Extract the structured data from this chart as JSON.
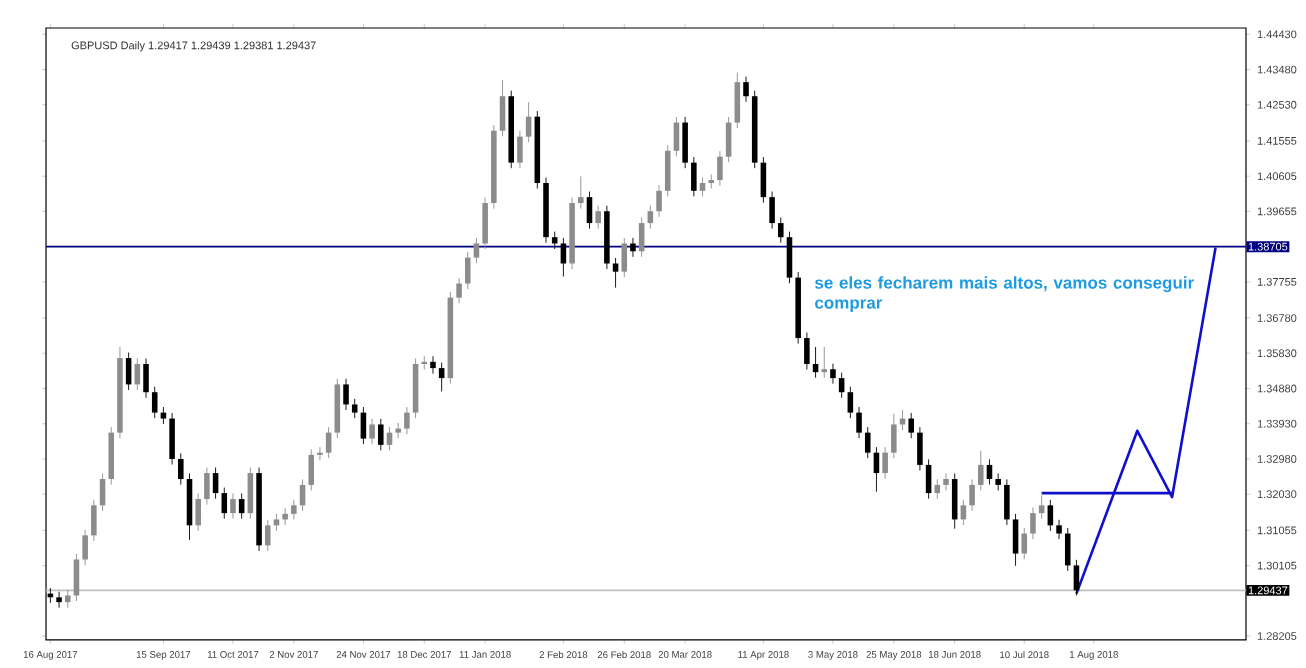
{
  "chart_data": {
    "type": "candlestick",
    "title": "GBPUSD Daily 1.29417 1.29439 1.29381 1.29437",
    "annotations": [
      "se eles fecharem mais altos, vamos conseguir comprar"
    ],
    "categories": [
      "16 Aug 2017",
      null,
      null,
      null,
      null,
      null,
      null,
      null,
      null,
      null,
      null,
      null,
      null,
      "15 Sep 2017",
      null,
      null,
      null,
      null,
      null,
      null,
      null,
      "11 Oct 2017",
      null,
      null,
      null,
      null,
      null,
      null,
      "2 Nov 2017",
      null,
      null,
      null,
      null,
      null,
      null,
      null,
      "24 Nov 2017",
      null,
      null,
      null,
      null,
      null,
      null,
      "18 Dec 2017",
      null,
      null,
      null,
      null,
      null,
      null,
      "11 Jan 2018",
      null,
      null,
      null,
      null,
      null,
      null,
      null,
      null,
      "2 Feb 2018",
      null,
      null,
      null,
      null,
      null,
      null,
      "26 Feb 2018",
      null,
      null,
      null,
      null,
      null,
      null,
      "20 Mar 2018",
      null,
      null,
      null,
      null,
      null,
      null,
      null,
      null,
      "11 Apr 2018",
      null,
      null,
      null,
      null,
      null,
      null,
      null,
      "3 May 2018",
      null,
      null,
      null,
      null,
      null,
      null,
      "25 May 2018",
      null,
      null,
      null,
      null,
      null,
      null,
      "18 Jun 2018",
      null,
      null,
      null,
      null,
      null,
      null,
      null,
      "10 Jul 2018",
      null,
      null,
      null,
      null,
      null,
      null,
      null,
      "1 Aug 2018",
      null,
      null,
      null,
      null,
      null,
      null,
      null,
      null,
      null,
      null,
      null,
      null,
      null,
      null,
      null,
      null,
      null
    ],
    "ohlc": [
      [
        1.2935,
        1.295,
        1.291,
        1.2925
      ],
      [
        1.2925,
        1.294,
        1.2897,
        1.2912
      ],
      [
        1.2912,
        1.2945,
        1.2897,
        1.293
      ],
      [
        1.293,
        1.3042,
        1.2915,
        1.3027
      ],
      [
        1.3027,
        1.3107,
        1.3012,
        1.3092
      ],
      [
        1.3092,
        1.3188,
        1.3077,
        1.3173
      ],
      [
        1.3173,
        1.3259,
        1.3158,
        1.3244
      ],
      [
        1.3244,
        1.3384,
        1.3229,
        1.3369
      ],
      [
        1.3369,
        1.36,
        1.3354,
        1.357
      ],
      [
        1.357,
        1.3585,
        1.3484,
        1.3499
      ],
      [
        1.3499,
        1.3569,
        1.3484,
        1.3554
      ],
      [
        1.3554,
        1.3569,
        1.3463,
        1.3478
      ],
      [
        1.3478,
        1.3493,
        1.3408,
        1.3423
      ],
      [
        1.3423,
        1.3438,
        1.3392,
        1.3407
      ],
      [
        1.3407,
        1.3422,
        1.3283,
        1.3298
      ],
      [
        1.3298,
        1.3313,
        1.3229,
        1.3244
      ],
      [
        1.3244,
        1.3259,
        1.308,
        1.3119
      ],
      [
        1.3119,
        1.3205,
        1.3104,
        1.319
      ],
      [
        1.319,
        1.3275,
        1.3175,
        1.326
      ],
      [
        1.326,
        1.3275,
        1.3191,
        1.3206
      ],
      [
        1.3206,
        1.3221,
        1.3137,
        1.3152
      ],
      [
        1.3152,
        1.3205,
        1.3137,
        1.319
      ],
      [
        1.319,
        1.3205,
        1.3137,
        1.3152
      ],
      [
        1.3152,
        1.3275,
        1.3137,
        1.326
      ],
      [
        1.326,
        1.3275,
        1.305,
        1.3065
      ],
      [
        1.3065,
        1.3134,
        1.305,
        1.3119
      ],
      [
        1.3119,
        1.315,
        1.3104,
        1.3135
      ],
      [
        1.3135,
        1.3165,
        1.312,
        1.315
      ],
      [
        1.315,
        1.3188,
        1.3135,
        1.3173
      ],
      [
        1.3173,
        1.3243,
        1.3158,
        1.3228
      ],
      [
        1.3228,
        1.3324,
        1.3213,
        1.3309
      ],
      [
        1.3309,
        1.333,
        1.3294,
        1.3315
      ],
      [
        1.3315,
        1.3384,
        1.33,
        1.3369
      ],
      [
        1.3369,
        1.3514,
        1.3354,
        1.3499
      ],
      [
        1.3499,
        1.3514,
        1.343,
        1.3445
      ],
      [
        1.3445,
        1.346,
        1.3408,
        1.3423
      ],
      [
        1.3423,
        1.3438,
        1.3338,
        1.3353
      ],
      [
        1.3353,
        1.3406,
        1.3338,
        1.3391
      ],
      [
        1.3391,
        1.3406,
        1.3321,
        1.3336
      ],
      [
        1.3336,
        1.3384,
        1.3321,
        1.3369
      ],
      [
        1.3369,
        1.3395,
        1.3354,
        1.338
      ],
      [
        1.338,
        1.3438,
        1.3365,
        1.3423
      ],
      [
        1.3423,
        1.3569,
        1.3408,
        1.3554
      ],
      [
        1.3554,
        1.3575,
        1.3539,
        1.356
      ],
      [
        1.356,
        1.3575,
        1.3528,
        1.3543
      ],
      [
        1.3543,
        1.3558,
        1.348,
        1.3516
      ],
      [
        1.3516,
        1.3748,
        1.3501,
        1.3733
      ],
      [
        1.3733,
        1.3786,
        1.3718,
        1.3771
      ],
      [
        1.3771,
        1.3856,
        1.3756,
        1.3841
      ],
      [
        1.3841,
        1.3894,
        1.3826,
        1.3879
      ],
      [
        1.3879,
        1.4003,
        1.3864,
        1.3988
      ],
      [
        1.3988,
        1.4198,
        1.3973,
        1.4183
      ],
      [
        1.4183,
        1.432,
        1.4168,
        1.4276
      ],
      [
        1.4276,
        1.4291,
        1.4082,
        1.4097
      ],
      [
        1.4097,
        1.4182,
        1.4082,
        1.4167
      ],
      [
        1.4167,
        1.426,
        1.4152,
        1.4221
      ],
      [
        1.4221,
        1.4236,
        1.4027,
        1.4042
      ],
      [
        1.4042,
        1.4057,
        1.3881,
        1.3896
      ],
      [
        1.3896,
        1.3911,
        1.3864,
        1.3879
      ],
      [
        1.3879,
        1.3894,
        1.379,
        1.3825
      ],
      [
        1.3825,
        1.4003,
        1.381,
        1.3988
      ],
      [
        1.3988,
        1.406,
        1.3973,
        1.4004
      ],
      [
        1.4004,
        1.4019,
        1.3919,
        1.3934
      ],
      [
        1.3934,
        1.3981,
        1.3919,
        1.3966
      ],
      [
        1.3966,
        1.3981,
        1.381,
        1.3825
      ],
      [
        1.3825,
        1.384,
        1.376,
        1.3803
      ],
      [
        1.3803,
        1.3894,
        1.3788,
        1.3879
      ],
      [
        1.3879,
        1.3894,
        1.3843,
        1.3858
      ],
      [
        1.3858,
        1.3949,
        1.3843,
        1.3934
      ],
      [
        1.3934,
        1.3981,
        1.3919,
        1.3966
      ],
      [
        1.3966,
        1.4036,
        1.3951,
        1.4021
      ],
      [
        1.4021,
        1.4144,
        1.4006,
        1.4129
      ],
      [
        1.4129,
        1.422,
        1.4114,
        1.4205
      ],
      [
        1.4205,
        1.422,
        1.4082,
        1.4097
      ],
      [
        1.4097,
        1.4112,
        1.4006,
        1.4021
      ],
      [
        1.4021,
        1.4057,
        1.4006,
        1.4042
      ],
      [
        1.4042,
        1.4065,
        1.4027,
        1.405
      ],
      [
        1.405,
        1.4128,
        1.4035,
        1.4113
      ],
      [
        1.4113,
        1.422,
        1.4098,
        1.4205
      ],
      [
        1.4205,
        1.434,
        1.419,
        1.4314
      ],
      [
        1.4314,
        1.4329,
        1.4261,
        1.4276
      ],
      [
        1.4276,
        1.4291,
        1.4082,
        1.4097
      ],
      [
        1.4097,
        1.4112,
        1.3989,
        1.4004
      ],
      [
        1.4004,
        1.4019,
        1.3919,
        1.3934
      ],
      [
        1.3934,
        1.3949,
        1.3881,
        1.3896
      ],
      [
        1.3896,
        1.3911,
        1.3772,
        1.3787
      ],
      [
        1.3787,
        1.3802,
        1.3609,
        1.3624
      ],
      [
        1.3624,
        1.3639,
        1.3539,
        1.3554
      ],
      [
        1.3554,
        1.36,
        1.3517,
        1.3532
      ],
      [
        1.3532,
        1.36,
        1.3517,
        1.354
      ],
      [
        1.354,
        1.3555,
        1.3501,
        1.3516
      ],
      [
        1.3516,
        1.3531,
        1.3463,
        1.3478
      ],
      [
        1.3478,
        1.3493,
        1.3408,
        1.3423
      ],
      [
        1.3423,
        1.3438,
        1.3354,
        1.3369
      ],
      [
        1.3369,
        1.3384,
        1.33,
        1.3315
      ],
      [
        1.3315,
        1.333,
        1.321,
        1.326
      ],
      [
        1.326,
        1.333,
        1.3245,
        1.3315
      ],
      [
        1.3315,
        1.342,
        1.33,
        1.3391
      ],
      [
        1.3391,
        1.343,
        1.3376,
        1.3407
      ],
      [
        1.3407,
        1.3422,
        1.3354,
        1.3369
      ],
      [
        1.3369,
        1.3384,
        1.3267,
        1.3282
      ],
      [
        1.3282,
        1.3297,
        1.3191,
        1.3206
      ],
      [
        1.3206,
        1.3243,
        1.3191,
        1.3228
      ],
      [
        1.3228,
        1.3259,
        1.3213,
        1.3244
      ],
      [
        1.3244,
        1.3259,
        1.311,
        1.3135
      ],
      [
        1.3135,
        1.3188,
        1.312,
        1.3173
      ],
      [
        1.3173,
        1.3243,
        1.3158,
        1.3228
      ],
      [
        1.3228,
        1.332,
        1.3213,
        1.3282
      ],
      [
        1.3282,
        1.3297,
        1.3229,
        1.3244
      ],
      [
        1.3244,
        1.3259,
        1.3213,
        1.3228
      ],
      [
        1.3228,
        1.3243,
        1.312,
        1.3135
      ],
      [
        1.3135,
        1.315,
        1.301,
        1.3043
      ],
      [
        1.3043,
        1.3112,
        1.3028,
        1.3097
      ],
      [
        1.3097,
        1.3167,
        1.3082,
        1.3152
      ],
      [
        1.3152,
        1.32,
        1.3137,
        1.3173
      ],
      [
        1.3173,
        1.3188,
        1.3104,
        1.3119
      ],
      [
        1.3119,
        1.3134,
        1.3082,
        1.3097
      ],
      [
        1.3097,
        1.3112,
        1.2996,
        1.3011
      ],
      [
        1.3011,
        1.3026,
        1.293,
        1.2944
      ],
      null,
      null,
      null,
      null,
      null,
      null,
      null,
      null,
      null,
      null,
      null,
      null,
      null,
      null,
      null,
      null,
      null,
      null,
      null
    ],
    "series": [
      {
        "type": "line",
        "color": "#1010cc",
        "values": [
          null,
          null,
          null,
          null,
          null,
          null,
          null,
          null,
          null,
          null,
          null,
          null,
          null,
          null,
          null,
          null,
          null,
          null,
          null,
          null,
          null,
          null,
          null,
          null,
          null,
          null,
          null,
          null,
          null,
          null,
          null,
          null,
          null,
          null,
          null,
          null,
          null,
          null,
          null,
          null,
          null,
          null,
          null,
          null,
          null,
          null,
          null,
          null,
          null,
          null,
          null,
          null,
          null,
          null,
          null,
          null,
          null,
          null,
          null,
          null,
          null,
          null,
          null,
          null,
          null,
          null,
          null,
          null,
          null,
          null,
          null,
          null,
          null,
          null,
          null,
          null,
          null,
          null,
          null,
          null,
          null,
          null,
          null,
          null,
          null,
          null,
          null,
          null,
          null,
          null,
          null,
          null,
          null,
          null,
          null,
          null,
          null,
          null,
          null,
          null,
          null,
          null,
          null,
          null,
          null,
          null,
          null,
          null,
          null,
          null,
          null,
          null,
          null,
          null,
          null,
          null,
          null,
          null,
          1.2935,
          null,
          null,
          null,
          null,
          null,
          null,
          1.3374,
          null,
          null,
          null,
          1.3195,
          null,
          null,
          null,
          null,
          1.3868,
          null,
          null,
          null
        ]
      },
      {
        "type": "line",
        "color": "#1010cc",
        "values": [
          null,
          null,
          null,
          null,
          null,
          null,
          null,
          null,
          null,
          null,
          null,
          null,
          null,
          null,
          null,
          null,
          null,
          null,
          null,
          null,
          null,
          null,
          null,
          null,
          null,
          null,
          null,
          null,
          null,
          null,
          null,
          null,
          null,
          null,
          null,
          null,
          null,
          null,
          null,
          null,
          null,
          null,
          null,
          null,
          null,
          null,
          null,
          null,
          null,
          null,
          null,
          null,
          null,
          null,
          null,
          null,
          null,
          null,
          null,
          null,
          null,
          null,
          null,
          null,
          null,
          null,
          null,
          null,
          null,
          null,
          null,
          null,
          null,
          null,
          null,
          null,
          null,
          null,
          null,
          null,
          null,
          null,
          null,
          null,
          null,
          null,
          null,
          null,
          null,
          null,
          null,
          null,
          null,
          null,
          null,
          null,
          null,
          null,
          null,
          null,
          null,
          null,
          null,
          null,
          null,
          null,
          null,
          null,
          null,
          null,
          null,
          null,
          null,
          null,
          1.3206,
          1.3206,
          1.3206,
          1.3206,
          1.3206,
          1.3206,
          1.3206,
          1.3206,
          1.3206,
          1.3206,
          1.3206,
          1.3206,
          1.3206,
          1.3206,
          1.3206,
          1.3206,
          null,
          null,
          null,
          null,
          null,
          null,
          null,
          null
        ]
      }
    ],
    "ref_lines": [
      {
        "axis": "y",
        "value": 1.38705,
        "label": "1.38705",
        "color": "#000080"
      },
      {
        "axis": "y",
        "value": 1.29437,
        "label": "1.29437",
        "color": "#c0c0c0"
      }
    ],
    "ylim": [
      1.281,
      1.446
    ],
    "yticks": [
      {
        "value": 1.4443,
        "label": "1.44430"
      },
      {
        "value": 1.4348,
        "label": "1.43480"
      },
      {
        "value": 1.4253,
        "label": "1.42530"
      },
      {
        "value": 1.41555,
        "label": "1.41555"
      },
      {
        "value": 1.40605,
        "label": "1.40605"
      },
      {
        "value": 1.39655,
        "label": "1.39655"
      },
      {
        "value": 1.37755,
        "label": "1.37755"
      },
      {
        "value": 1.3678,
        "label": "1.36780"
      },
      {
        "value": 1.3583,
        "label": "1.35830"
      },
      {
        "value": 1.3488,
        "label": "1.34880"
      },
      {
        "value": 1.3393,
        "label": "1.33930"
      },
      {
        "value": 1.3298,
        "label": "1.32980"
      },
      {
        "value": 1.3203,
        "label": "1.32030"
      },
      {
        "value": 1.31055,
        "label": "1.31055"
      },
      {
        "value": 1.30105,
        "label": "1.30105"
      },
      {
        "value": 1.28205,
        "label": "1.28205"
      }
    ]
  }
}
